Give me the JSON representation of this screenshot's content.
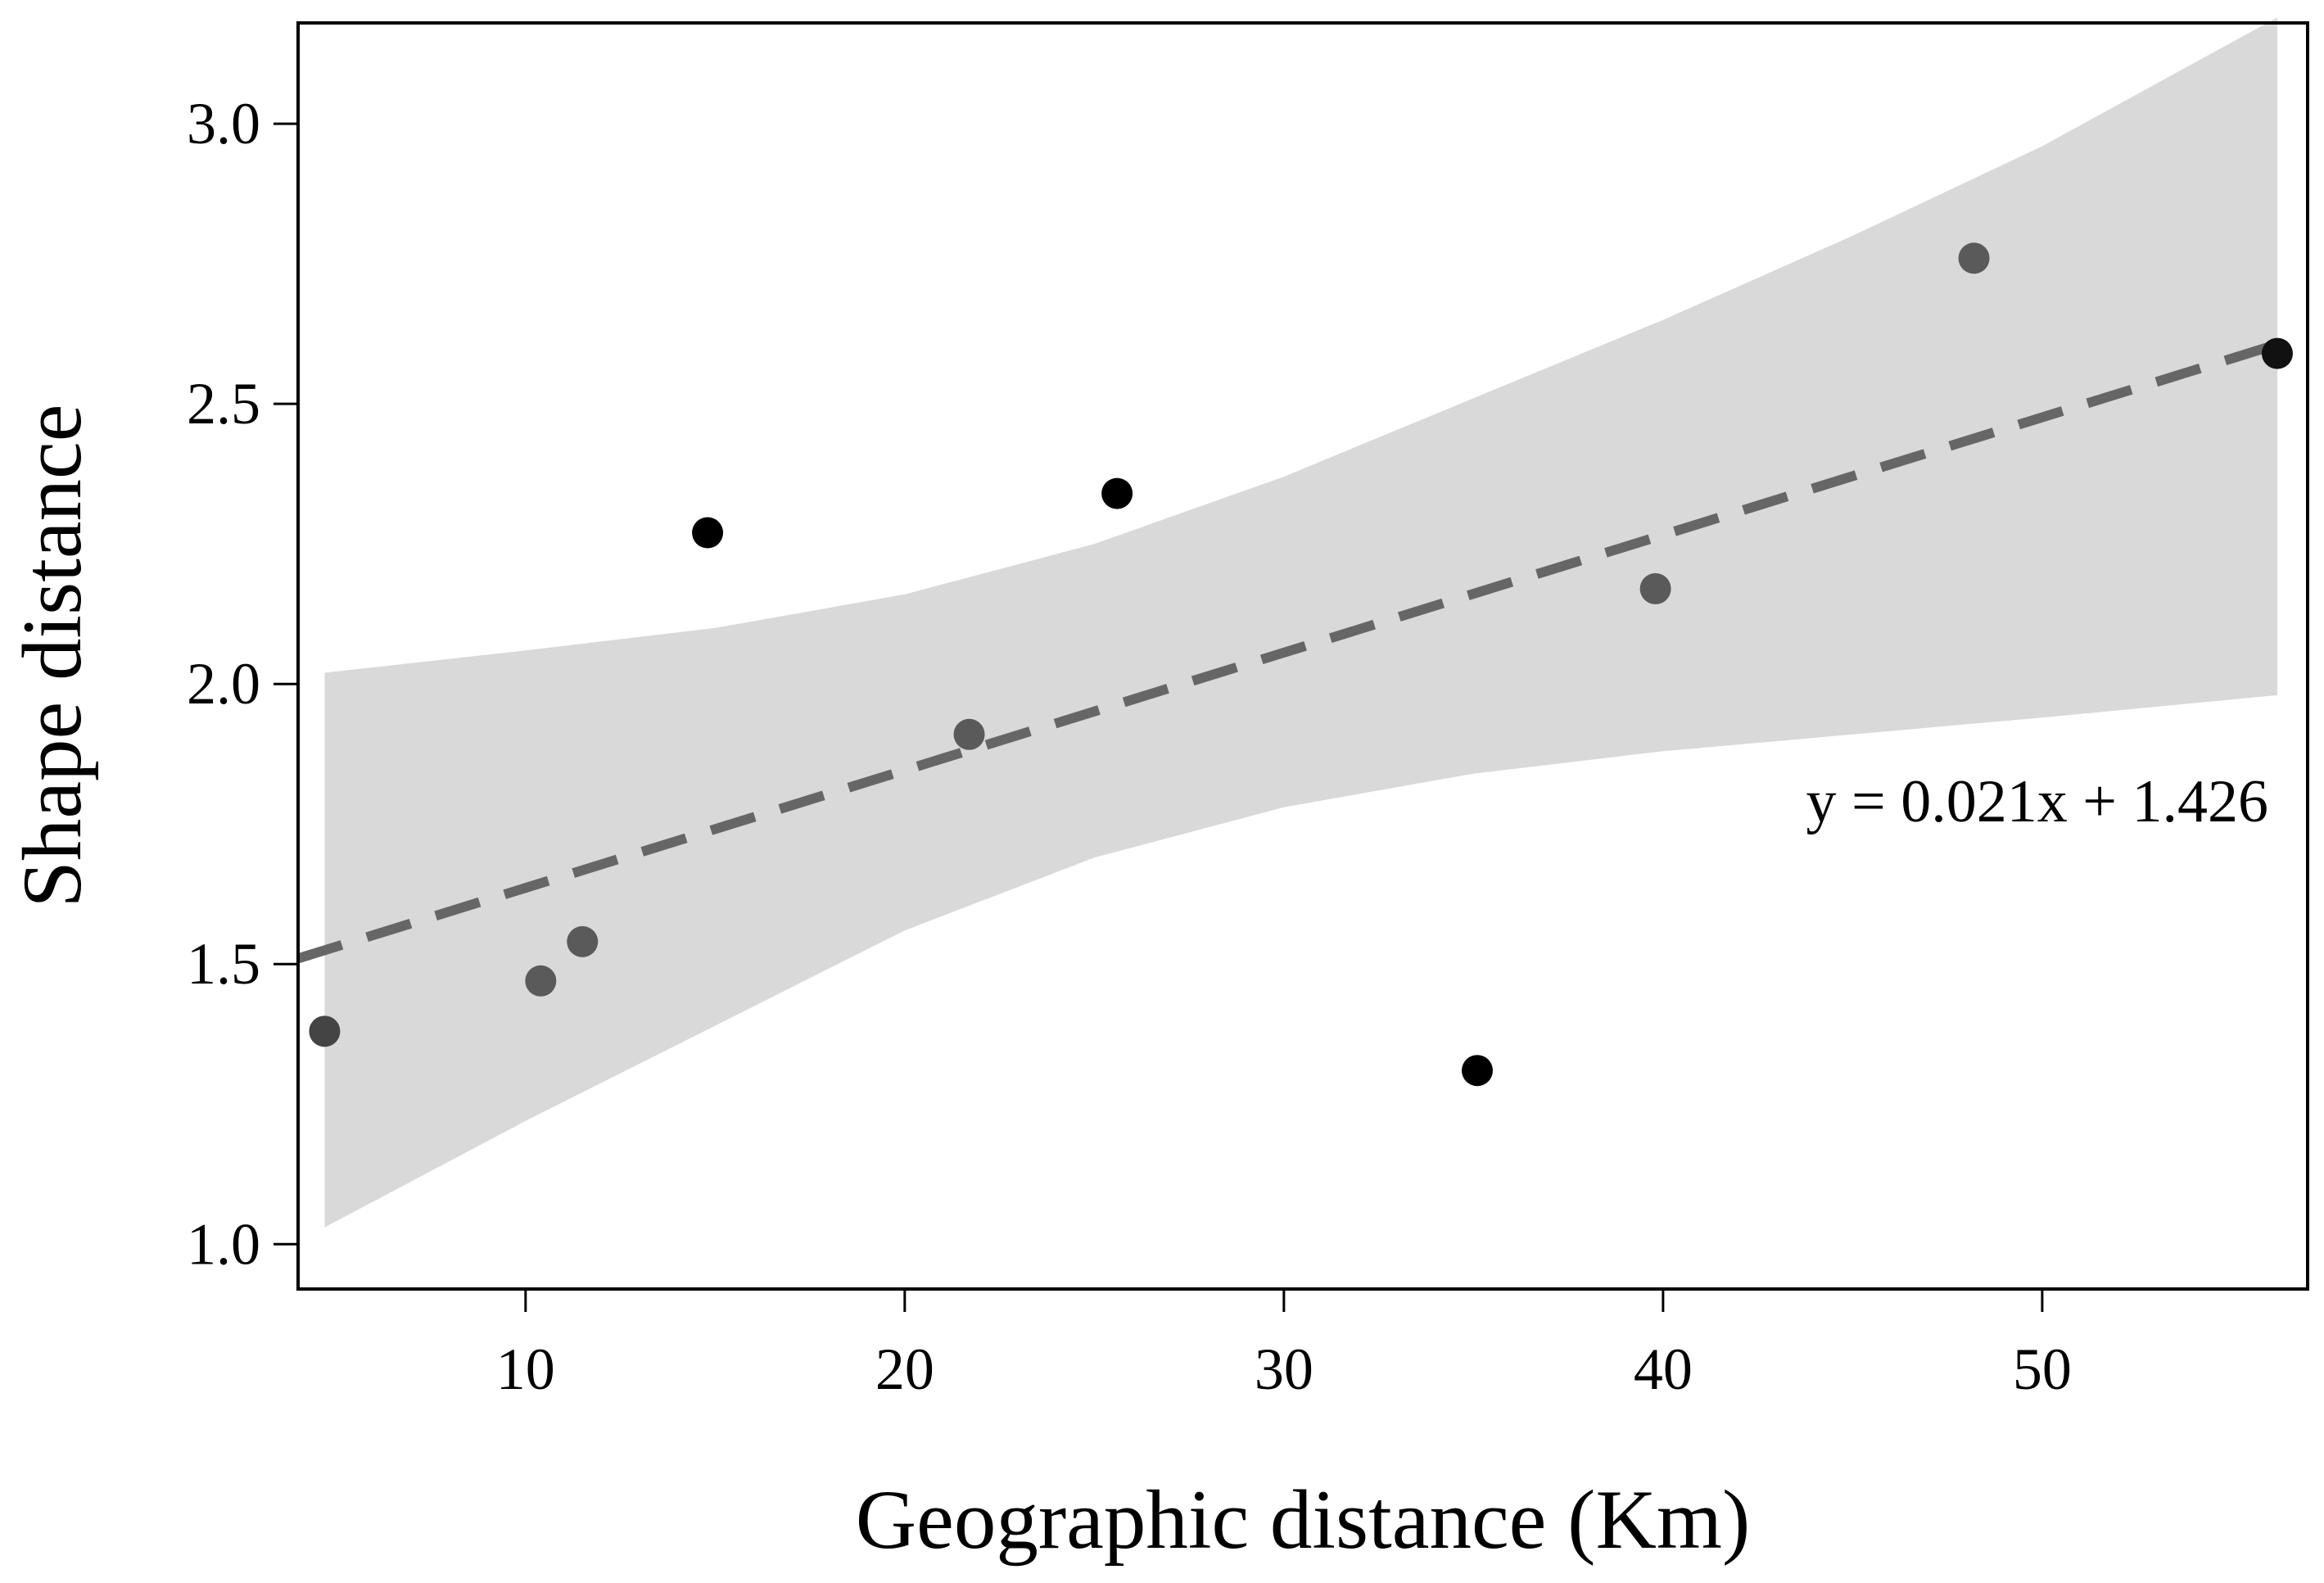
{
  "chart_data": {
    "type": "scatter",
    "xlabel": "Geographic distance (Km)",
    "ylabel": "Shape distance",
    "xlim": [
      4,
      57
    ],
    "ylim": [
      0.92,
      3.18
    ],
    "xticks": [
      "10",
      "20",
      "30",
      "40",
      "50"
    ],
    "yticks": [
      "1.0",
      "1.5",
      "2.0",
      "2.5",
      "3.0"
    ],
    "grid": false,
    "points": [
      {
        "x": 4.7,
        "y": 1.38,
        "color": "#444444"
      },
      {
        "x": 10.4,
        "y": 1.47,
        "color": "#5a5a5a"
      },
      {
        "x": 11.5,
        "y": 1.54,
        "color": "#5a5a5a"
      },
      {
        "x": 14.8,
        "y": 2.27,
        "color": "#000000"
      },
      {
        "x": 21.7,
        "y": 1.91,
        "color": "#5a5a5a"
      },
      {
        "x": 25.6,
        "y": 2.34,
        "color": "#000000"
      },
      {
        "x": 35.1,
        "y": 1.31,
        "color": "#000000"
      },
      {
        "x": 39.8,
        "y": 2.17,
        "color": "#5a5a5a"
      },
      {
        "x": 48.2,
        "y": 2.76,
        "color": "#5a5a5a"
      },
      {
        "x": 56.2,
        "y": 2.59,
        "color": "#111111"
      }
    ],
    "fit": {
      "slope": 0.021,
      "intercept": 1.426,
      "x_range": [
        4,
        56.2
      ],
      "color": "#666666"
    },
    "confidence_band": {
      "x": [
        4.7,
        10,
        15,
        20,
        25,
        30,
        35,
        40,
        45,
        50,
        56.2
      ],
      "lower": [
        1.03,
        1.22,
        1.39,
        1.56,
        1.69,
        1.78,
        1.84,
        1.88,
        1.91,
        1.94,
        1.98
      ],
      "upper": [
        2.02,
        2.06,
        2.1,
        2.16,
        2.25,
        2.37,
        2.51,
        2.65,
        2.8,
        2.96,
        3.19
      ],
      "color": "#d9d9d9"
    },
    "annotation": "y = 0.021x + 1.426"
  }
}
